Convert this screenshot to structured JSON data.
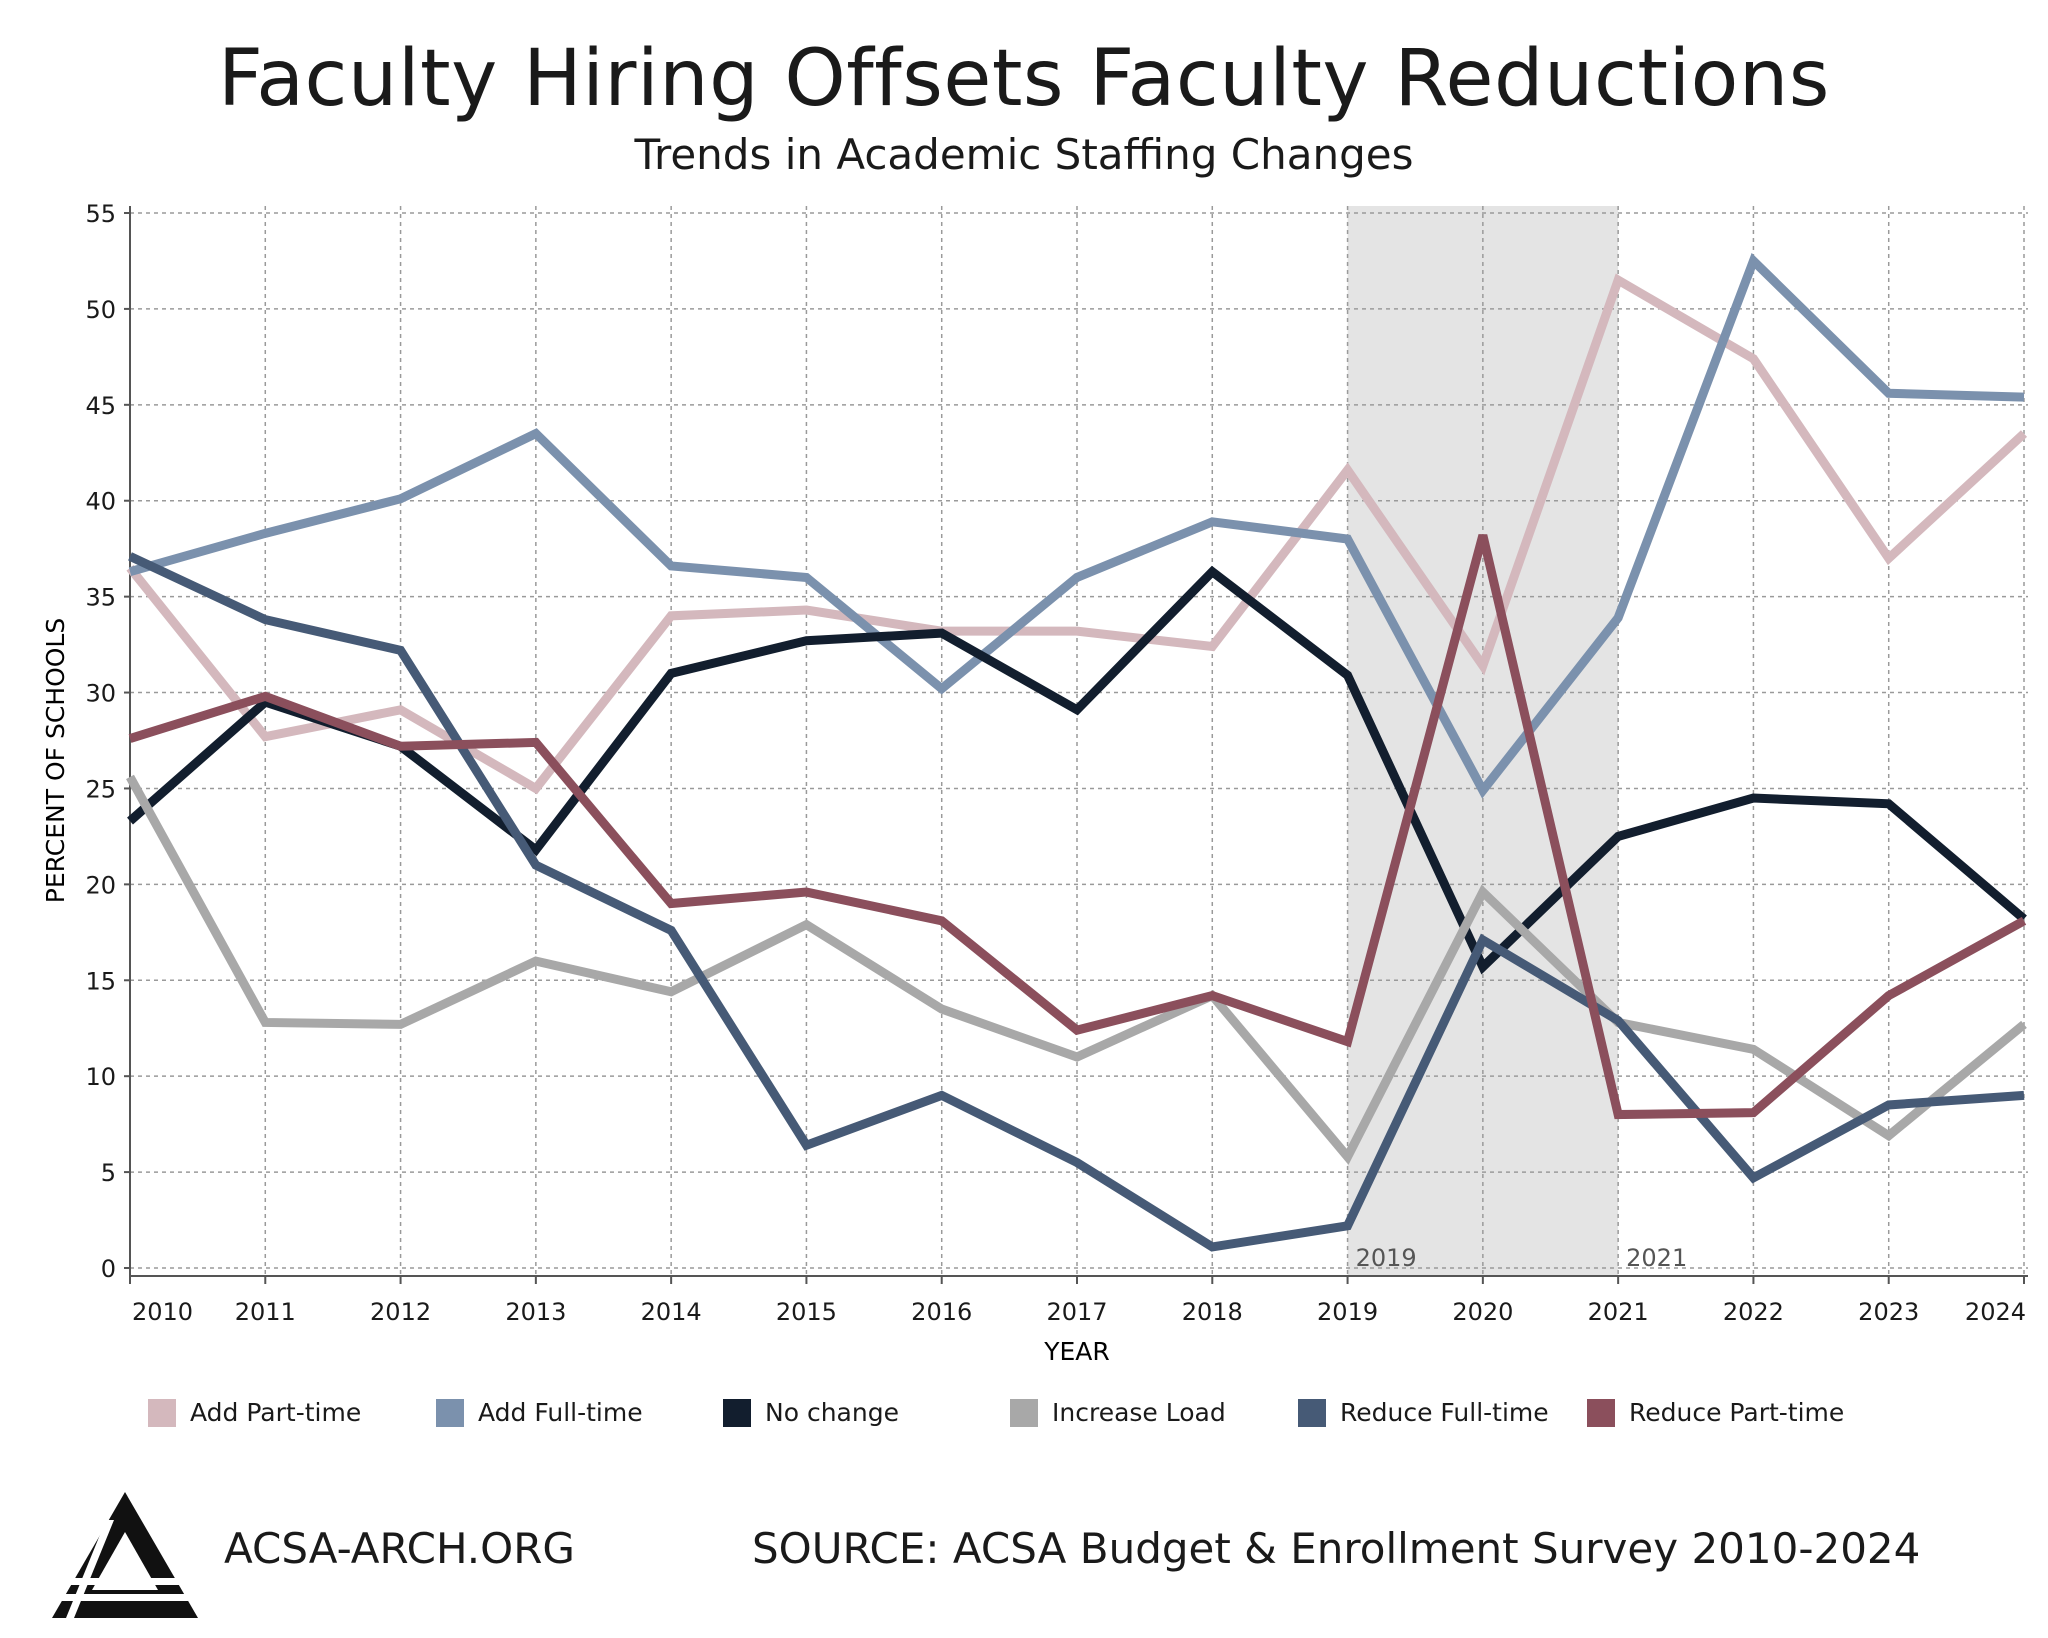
{
  "header": {
    "title": "Faculty Hiring Offsets Faculty Reductions",
    "subtitle": "Trends in Academic Staffing Changes"
  },
  "footer": {
    "org": "ACSA-ARCH.ORG",
    "source": "SOURCE: ACSA Budget & Enrollment Survey 2010-2024"
  },
  "colors": {
    "Add Part-time": "#d4b8bd",
    "Add Full-time": "#7b91ad",
    "No change": "#121e2e",
    "Increase Load": "#a8a8a8",
    "Reduce Full-time": "#465a76",
    "Reduce Part-time": "#8b4f5c",
    "shade": "#e4e4e4",
    "grid": "#9a9a9a"
  },
  "chart_data": {
    "type": "line",
    "xlabel": "YEAR",
    "ylabel": "PERCENT OF SCHOOLS",
    "ylim": [
      0,
      55
    ],
    "yticks": [
      0,
      5,
      10,
      15,
      20,
      25,
      30,
      35,
      40,
      45,
      50,
      55
    ],
    "x": [
      2010,
      2011,
      2012,
      2013,
      2014,
      2015,
      2016,
      2017,
      2018,
      2019,
      2020,
      2021,
      2022,
      2023,
      2024
    ],
    "grid": true,
    "legend_position": "bottom",
    "shaded_region": {
      "from": 2019,
      "to": 2021,
      "labels": [
        "2019",
        "2021"
      ]
    },
    "series": [
      {
        "name": "Add Part-time",
        "values": [
          36.5,
          27.7,
          29.1,
          25.0,
          34.0,
          34.3,
          33.2,
          33.2,
          32.4,
          41.6,
          31.4,
          51.5,
          47.4,
          37.0,
          43.5
        ]
      },
      {
        "name": "Add Full-time",
        "values": [
          36.3,
          38.3,
          40.1,
          43.5,
          36.6,
          36.0,
          30.2,
          36.0,
          38.9,
          38.0,
          24.9,
          33.9,
          52.5,
          45.6,
          45.4
        ]
      },
      {
        "name": "No change",
        "values": [
          23.3,
          29.5,
          27.2,
          21.8,
          31.0,
          32.7,
          33.1,
          29.1,
          36.3,
          30.9,
          15.7,
          22.5,
          24.5,
          24.2,
          18.2
        ]
      },
      {
        "name": "Increase Load",
        "values": [
          25.6,
          12.8,
          12.7,
          16.0,
          14.4,
          17.9,
          13.5,
          11.0,
          14.2,
          5.8,
          19.6,
          12.8,
          11.4,
          6.9,
          12.7
        ]
      },
      {
        "name": "Reduce Full-time",
        "values": [
          37.1,
          33.8,
          32.2,
          21.0,
          17.6,
          6.4,
          9.0,
          5.5,
          1.1,
          2.2,
          17.1,
          12.9,
          4.7,
          8.5,
          9.0
        ]
      },
      {
        "name": "Reduce Part-time",
        "values": [
          27.6,
          29.8,
          27.2,
          27.4,
          19.0,
          19.6,
          18.1,
          12.4,
          14.2,
          11.8,
          38.2,
          8.0,
          8.1,
          14.2,
          18.1
        ]
      }
    ]
  }
}
